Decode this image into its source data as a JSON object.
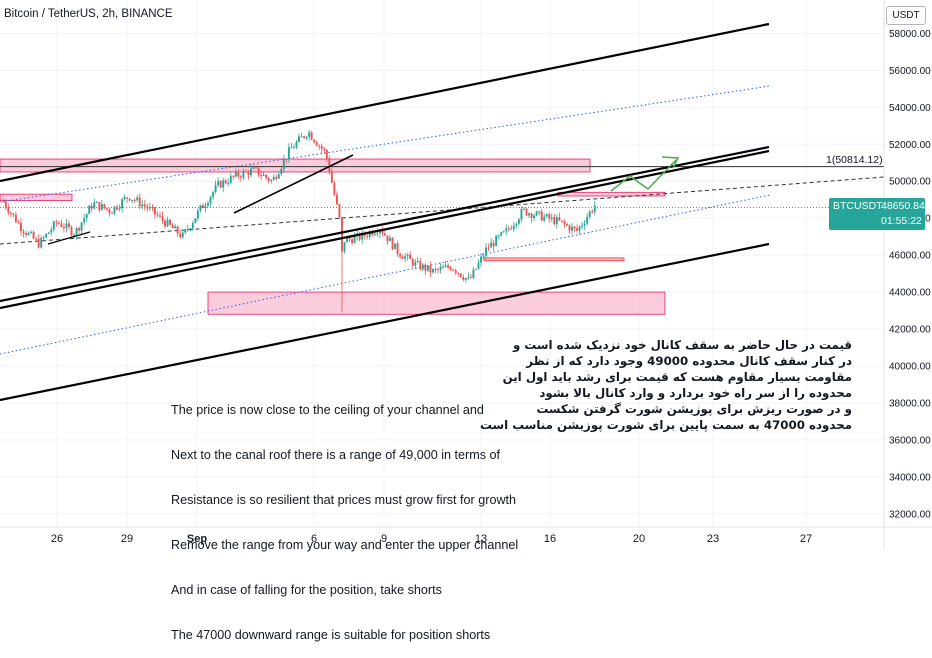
{
  "header": {
    "title": "Bitcoin / TetherUS, 2h, BINANCE",
    "currency": "USDT"
  },
  "price_tag": {
    "symbol": "BTCUSDT",
    "price": "48650.84",
    "countdown": "01:55:22"
  },
  "fib_label": "1(50814.12)",
  "colors": {
    "up": "#26a69a",
    "down": "#ef5350",
    "zone_fill": "#f8bbd0",
    "zone_border": "#e91e63",
    "channel": "#000000",
    "dotted": "#2962ff",
    "arrow": "#4caf50"
  },
  "note_en": [
    "The price is now close to the ceiling of your channel and",
    "Next to the canal roof there is a range of 49,000 in terms of",
    "Resistance is so resilient that prices must grow first for growth",
    "Remove the range from your way and enter the upper channel",
    "And in case of falling for the position, take shorts",
    "The 47000 downward range is suitable for position shorts"
  ],
  "note_fa": [
    "قیمت در حال حاضر به سقف کانال خود نزدیک شده است و",
    "در کنار سقف کانال محدوده 49000 وجود دارد که از نظر",
    "مقاومت بسیار مقاوم هست که قیمت برای رشد باید اول این",
    "محدوده را از سر راه خود بردارد و وارد کانال بالا بشود",
    "و در صورت ریزش برای پوزیشن شورت گرفتن شکست",
    "محدوده 47000 به سمت پایین برای شورت پوزیشن مناسب است"
  ],
  "chart_data": {
    "type": "candlestick",
    "y_axis": {
      "ticks": [
        32000,
        34000,
        36000,
        38000,
        40000,
        42000,
        44000,
        46000,
        48000,
        50000,
        52000,
        54000,
        56000,
        58000
      ],
      "tick_labels": [
        "32000.00",
        "34000.00",
        "36000.00",
        "38000.00",
        "40000.00",
        "42000.00",
        "44000.00",
        "46000.00",
        "48000.00",
        "50000.00",
        "52000.00",
        "54000.00",
        "56000.00",
        "58000.00"
      ],
      "range": [
        31300,
        59000
      ]
    },
    "x_axis": {
      "tick_labels": [
        "26",
        "29",
        "Sep",
        "6",
        "9",
        "13",
        "16",
        "20",
        "23",
        "27"
      ]
    },
    "price_path": [
      [
        "26",
        48900
      ],
      [
        "26",
        47500
      ],
      [
        "26",
        46600
      ],
      [
        "26",
        47800
      ],
      [
        "26",
        47200
      ],
      [
        "29",
        48800
      ],
      [
        "29",
        48400
      ],
      [
        "29",
        49200
      ],
      [
        "29",
        48600
      ],
      [
        "29",
        47800
      ],
      [
        "Sep",
        47000
      ],
      [
        "Sep",
        48500
      ],
      [
        "Sep",
        49800
      ],
      [
        "Sep",
        50300
      ],
      [
        "6",
        50600
      ],
      [
        "6",
        50000
      ],
      [
        "6",
        51700
      ],
      [
        "6",
        52700
      ],
      [
        "6",
        51500
      ],
      [
        "6",
        46800
      ],
      [
        "9",
        47000
      ],
      [
        "9",
        47500
      ],
      [
        "9",
        46200
      ],
      [
        "9",
        45500
      ],
      [
        "9",
        45100
      ],
      [
        "13",
        45400
      ],
      [
        "13",
        44600
      ],
      [
        "13",
        46400
      ],
      [
        "13",
        47200
      ],
      [
        "16",
        48400
      ],
      [
        "16",
        48100
      ],
      [
        "16",
        47800
      ],
      [
        "16",
        47300
      ],
      [
        "16",
        48700
      ]
    ],
    "horizontal_levels": [
      {
        "label": "1(50814.12)",
        "value": 50814.12
      }
    ],
    "last_price": 48650.84
  }
}
